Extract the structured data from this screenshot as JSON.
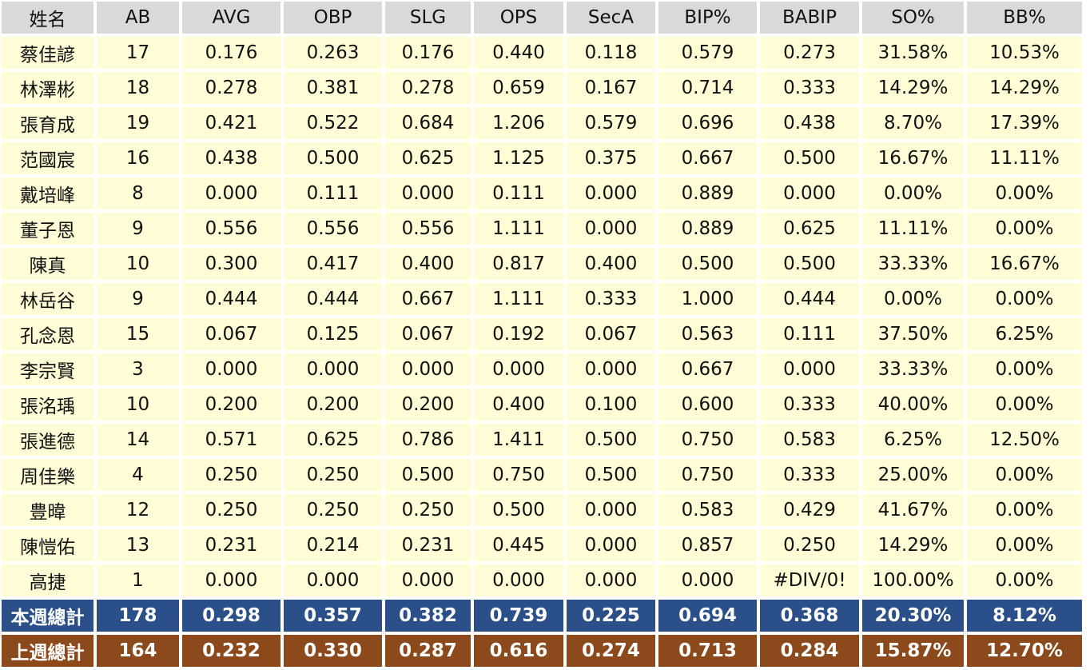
{
  "columns": [
    "姓名",
    "AB",
    "AVG",
    "OBP",
    "SLG",
    "OPS",
    "SecA",
    "BIP%",
    "BABIP",
    "SO%",
    "BB%"
  ],
  "rows": [
    [
      "蔡佳諺",
      "17",
      "0.176",
      "0.263",
      "0.176",
      "0.440",
      "0.118",
      "0.579",
      "0.273",
      "31.58%",
      "10.53%"
    ],
    [
      "林澤彬",
      "18",
      "0.278",
      "0.381",
      "0.278",
      "0.659",
      "0.167",
      "0.714",
      "0.333",
      "14.29%",
      "14.29%"
    ],
    [
      "張育成",
      "19",
      "0.421",
      "0.522",
      "0.684",
      "1.206",
      "0.579",
      "0.696",
      "0.438",
      "8.70%",
      "17.39%"
    ],
    [
      "范國宸",
      "16",
      "0.438",
      "0.500",
      "0.625",
      "1.125",
      "0.375",
      "0.667",
      "0.500",
      "16.67%",
      "11.11%"
    ],
    [
      "戴培峰",
      "8",
      "0.000",
      "0.111",
      "0.000",
      "0.111",
      "0.000",
      "0.889",
      "0.000",
      "0.00%",
      "0.00%"
    ],
    [
      "董子恩",
      "9",
      "0.556",
      "0.556",
      "0.556",
      "1.111",
      "0.000",
      "0.889",
      "0.625",
      "11.11%",
      "0.00%"
    ],
    [
      "陳真",
      "10",
      "0.300",
      "0.417",
      "0.400",
      "0.817",
      "0.400",
      "0.500",
      "0.500",
      "33.33%",
      "16.67%"
    ],
    [
      "林岳谷",
      "9",
      "0.444",
      "0.444",
      "0.667",
      "1.111",
      "0.333",
      "1.000",
      "0.444",
      "0.00%",
      "0.00%"
    ],
    [
      "孔念恩",
      "15",
      "0.067",
      "0.125",
      "0.067",
      "0.192",
      "0.067",
      "0.563",
      "0.111",
      "37.50%",
      "6.25%"
    ],
    [
      "李宗賢",
      "3",
      "0.000",
      "0.000",
      "0.000",
      "0.000",
      "0.000",
      "0.667",
      "0.000",
      "33.33%",
      "0.00%"
    ],
    [
      "張洺瑀",
      "10",
      "0.200",
      "0.200",
      "0.200",
      "0.400",
      "0.100",
      "0.600",
      "0.333",
      "40.00%",
      "0.00%"
    ],
    [
      "張進德",
      "14",
      "0.571",
      "0.625",
      "0.786",
      "1.411",
      "0.500",
      "0.750",
      "0.583",
      "6.25%",
      "12.50%"
    ],
    [
      "周佳樂",
      "4",
      "0.250",
      "0.250",
      "0.500",
      "0.750",
      "0.500",
      "0.750",
      "0.333",
      "25.00%",
      "0.00%"
    ],
    [
      "豊暐",
      "12",
      "0.250",
      "0.250",
      "0.250",
      "0.500",
      "0.000",
      "0.583",
      "0.429",
      "41.67%",
      "0.00%"
    ],
    [
      "陳愷佑",
      "13",
      "0.231",
      "0.214",
      "0.231",
      "0.445",
      "0.000",
      "0.857",
      "0.250",
      "14.29%",
      "0.00%"
    ],
    [
      "高捷",
      "1",
      "0.000",
      "0.000",
      "0.000",
      "0.000",
      "0.000",
      "0.000",
      "#DIV/0!",
      "100.00%",
      "0.00%"
    ]
  ],
  "totals": {
    "this_week": [
      "本週總計",
      "178",
      "0.298",
      "0.357",
      "0.382",
      "0.739",
      "0.225",
      "0.694",
      "0.368",
      "20.30%",
      "8.12%"
    ],
    "last_week": [
      "上週總計",
      "164",
      "0.232",
      "0.330",
      "0.287",
      "0.616",
      "0.274",
      "0.713",
      "0.284",
      "15.87%",
      "12.70%"
    ]
  },
  "colors": {
    "header_bg": "#d9d9d9",
    "row_bg": "#fffcd6",
    "this_week_bg": "#2b4f88",
    "last_week_bg": "#8c4a1c",
    "grid": "#ffffff"
  }
}
